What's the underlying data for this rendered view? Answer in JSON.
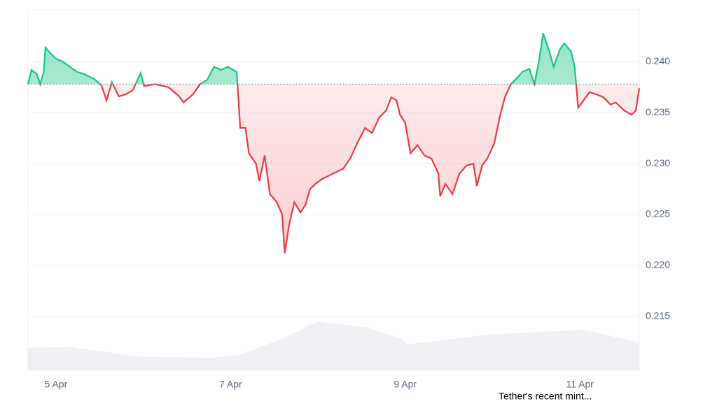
{
  "chart_data": {
    "type": "line",
    "annotation": "Tether's recent mint...",
    "baseline": 0.2378,
    "xlim": [
      4.68,
      11.68
    ],
    "xticks": [
      {
        "value": 5,
        "label": "5 Apr"
      },
      {
        "value": 7,
        "label": "7 Apr"
      },
      {
        "value": 9,
        "label": "9 Apr"
      },
      {
        "value": 11,
        "label": "11 Apr"
      }
    ],
    "ylim": [
      0.2097,
      0.2451
    ],
    "yticks": [
      {
        "value": 0.24,
        "label": "0.240"
      },
      0.235,
      {
        "value": 0.23,
        "label": "0.230"
      },
      0.225,
      {
        "value": 0.22,
        "label": "0.220"
      },
      0.215
    ],
    "y2lim": [
      0,
      400
    ],
    "grid": true,
    "above_color": "#16c784",
    "below_color": "#ea3943",
    "x": [
      4.68,
      4.72,
      4.78,
      4.82,
      4.86,
      4.88,
      4.94,
      5.0,
      5.08,
      5.16,
      5.24,
      5.32,
      5.44,
      5.52,
      5.58,
      5.64,
      5.72,
      5.8,
      5.88,
      5.97,
      6.01,
      6.13,
      6.29,
      6.41,
      6.46,
      6.57,
      6.65,
      6.73,
      6.81,
      6.89,
      6.97,
      7.07,
      7.11,
      7.17,
      7.21,
      7.29,
      7.33,
      7.39,
      7.45,
      7.53,
      7.59,
      7.62,
      7.67,
      7.73,
      7.8,
      7.86,
      7.91,
      7.97,
      8.05,
      8.17,
      8.29,
      8.37,
      8.45,
      8.54,
      8.62,
      8.7,
      8.78,
      8.84,
      8.9,
      8.94,
      9.0,
      9.06,
      9.14,
      9.22,
      9.3,
      9.38,
      9.4,
      9.46,
      9.54,
      9.62,
      9.7,
      9.78,
      9.82,
      9.88,
      9.94,
      10.02,
      10.08,
      10.14,
      10.21,
      10.29,
      10.34,
      10.42,
      10.48,
      10.53,
      10.58,
      10.65,
      10.7,
      10.77,
      10.82,
      10.9,
      10.94,
      10.98,
      11.04,
      11.11,
      11.19,
      11.27,
      11.35,
      11.41,
      11.51,
      11.59,
      11.64,
      11.68
    ],
    "series": [
      {
        "name": "Price",
        "values": [
          0.2378,
          0.2392,
          0.2388,
          0.2378,
          0.239,
          0.2414,
          0.2408,
          0.2403,
          0.24,
          0.2395,
          0.239,
          0.2388,
          0.2383,
          0.2377,
          0.2362,
          0.238,
          0.2366,
          0.2368,
          0.2372,
          0.2389,
          0.2376,
          0.2378,
          0.2375,
          0.2366,
          0.236,
          0.2368,
          0.2378,
          0.2382,
          0.2395,
          0.2392,
          0.2395,
          0.239,
          0.2335,
          0.2335,
          0.231,
          0.23,
          0.2283,
          0.2308,
          0.227,
          0.2262,
          0.225,
          0.2212,
          0.224,
          0.2262,
          0.2252,
          0.226,
          0.2275,
          0.228,
          0.2285,
          0.229,
          0.2295,
          0.2305,
          0.232,
          0.2335,
          0.233,
          0.2345,
          0.2352,
          0.2365,
          0.2362,
          0.2348,
          0.234,
          0.231,
          0.2318,
          0.2308,
          0.2305,
          0.229,
          0.2268,
          0.228,
          0.227,
          0.229,
          0.2298,
          0.23,
          0.2278,
          0.2298,
          0.2305,
          0.232,
          0.2345,
          0.2365,
          0.2378,
          0.2385,
          0.239,
          0.2393,
          0.2378,
          0.24,
          0.2428,
          0.241,
          0.2395,
          0.2412,
          0.2418,
          0.241,
          0.2395,
          0.2355,
          0.2362,
          0.237,
          0.2368,
          0.2365,
          0.2358,
          0.236,
          0.2352,
          0.2348,
          0.2352,
          0.2374
        ]
      },
      {
        "name": "Volume",
        "axis": "y2",
        "color": "#eef0f3",
        "x": [
          4.68,
          5.16,
          5.97,
          6.78,
          7.1,
          7.59,
          7.99,
          8.55,
          8.95,
          9.03,
          10.0,
          11.04,
          11.68
        ],
        "values": [
          25,
          26,
          15,
          14,
          17,
          35,
          54,
          48,
          35,
          29,
          40,
          45,
          31
        ]
      }
    ]
  }
}
